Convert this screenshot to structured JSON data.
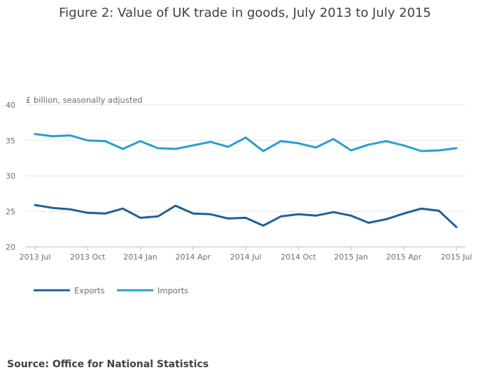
{
  "chart_data": {
    "type": "line",
    "title": "Figure 2: Value of UK trade in goods, July 2013 to July 2015",
    "ylabel": "£ billion, seasonally adjusted",
    "xlabel": "",
    "ylim": [
      20,
      40
    ],
    "yticks": [
      20,
      25,
      30,
      35,
      40
    ],
    "grid": true,
    "legend_position": "bottom-left",
    "x": [
      "2013 Jul",
      "2013 Aug",
      "2013 Sep",
      "2013 Oct",
      "2013 Nov",
      "2013 Dec",
      "2014 Jan",
      "2014 Feb",
      "2014 Mar",
      "2014 Apr",
      "2014 May",
      "2014 Jun",
      "2014 Jul",
      "2014 Aug",
      "2014 Sep",
      "2014 Oct",
      "2014 Nov",
      "2014 Dec",
      "2015 Jan",
      "2015 Feb",
      "2015 Mar",
      "2015 Apr",
      "2015 May",
      "2015 Jun",
      "2015 Jul"
    ],
    "tick_labels": [
      {
        "index": 0,
        "label": "2013 Jul"
      },
      {
        "index": 3,
        "label": "2013 Oct"
      },
      {
        "index": 6,
        "label": "2014 Jan"
      },
      {
        "index": 9,
        "label": "2014 Apr"
      },
      {
        "index": 12,
        "label": "2014 Jul"
      },
      {
        "index": 15,
        "label": "2014 Oct"
      },
      {
        "index": 18,
        "label": "2015 Jan"
      },
      {
        "index": 21,
        "label": "2015 Apr"
      },
      {
        "index": 24,
        "label": "2015 Jul"
      }
    ],
    "series": [
      {
        "name": "Exports",
        "color": "#206095",
        "values": [
          25.9,
          25.5,
          25.3,
          24.8,
          24.7,
          25.4,
          24.1,
          24.3,
          25.8,
          24.7,
          24.6,
          24.0,
          24.1,
          23.0,
          24.3,
          24.6,
          24.4,
          24.9,
          24.4,
          23.4,
          23.9,
          24.7,
          25.4,
          25.1,
          22.8
        ]
      },
      {
        "name": "Imports",
        "color": "#27a0cc",
        "values": [
          35.9,
          35.6,
          35.7,
          35.0,
          34.9,
          33.8,
          34.9,
          33.9,
          33.8,
          34.3,
          34.8,
          34.1,
          35.4,
          33.5,
          34.9,
          34.6,
          34.0,
          35.2,
          33.6,
          34.4,
          34.9,
          34.3,
          33.5,
          33.6,
          33.9
        ]
      }
    ]
  },
  "footer": {
    "source": "Source: Office for National Statistics"
  }
}
